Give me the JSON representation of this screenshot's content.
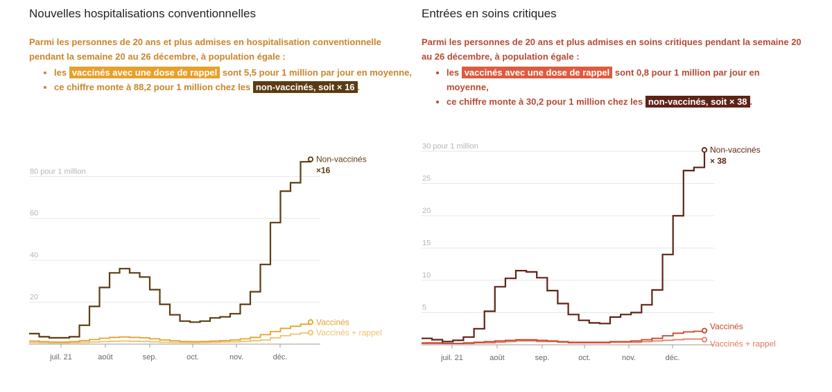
{
  "panels": [
    {
      "title": "Nouvelles hospitalisations conventionnelles",
      "intro": "Parmi les personnes de 20 ans et plus admises en hospitalisation conventionnelle pendant la semaine 20 au 26 décembre, à population égale :",
      "bullet1_pre": "les",
      "bullet1_hl": "vaccinés avec une dose de rappel",
      "bullet1_post": "sont 5,5 pour 1 million par jour en moyenne,",
      "bullet2_pre": "ce chiffre monte à 88,2 pour 1 million chez les",
      "bullet2_hl": "non-vaccinés, soit × 16",
      "bullet2_post": ".",
      "colors": {
        "text": "#c9852c",
        "hl_booster": "#e8a02a",
        "hl_unvax": "#5b3c12",
        "bullet": "#c9852c"
      }
    },
    {
      "title": "Entrées en soins critiques",
      "intro": "Parmi les personnes de 20 ans et plus admises en soins critiques pendant la semaine 20 au 26 décembre, à population égale :",
      "bullet1_pre": "les",
      "bullet1_hl": "vaccinés avec une dose de rappel",
      "bullet1_post": "sont 0,8 pour 1 million par jour en moyenne,",
      "bullet2_pre": "ce chiffre monte à 30,2 pour 1 million chez les",
      "bullet2_hl": "non-vaccinés, soit × 38",
      "bullet2_post": ".",
      "colors": {
        "text": "#b54a33",
        "hl_booster": "#dd5b3e",
        "hl_unvax": "#5f2217",
        "bullet": "#dd5b3e"
      }
    }
  ],
  "chart_data": [
    {
      "type": "line",
      "step": true,
      "x_ticks": [
        "juil. 21",
        "août",
        "sep.",
        "oct.",
        "nov.",
        "déc."
      ],
      "y_ticks": [
        20,
        40,
        60,
        80
      ],
      "y_tick_labels": [
        "20",
        "40",
        "60",
        "80 pour 1 million"
      ],
      "ylim": [
        0,
        95
      ],
      "grid": true,
      "series": [
        {
          "name": "Non-vaccinés",
          "annotation": "×16",
          "color": "#5b3c12",
          "values": [
            5,
            3.5,
            3,
            3,
            3.5,
            9,
            18,
            27,
            34,
            36,
            34,
            32,
            26,
            19,
            14,
            11,
            10.5,
            11,
            12.5,
            13,
            14.5,
            19,
            25,
            38,
            58,
            73,
            77,
            87,
            88.2
          ]
        },
        {
          "name": "Vaccinés",
          "color": "#e8a02a",
          "values": [
            1.5,
            1.2,
            1,
            1,
            1.2,
            1.6,
            2.2,
            2.8,
            3.2,
            3.4,
            3.2,
            3,
            2.5,
            2,
            1.6,
            1.3,
            1.2,
            1.3,
            1.5,
            1.7,
            2,
            2.5,
            3.2,
            4.5,
            6,
            7.5,
            8.5,
            9.5,
            10.5
          ]
        },
        {
          "name": "Vaccinés + rappel",
          "color": "#f0c06a",
          "values": [
            0.8,
            0.7,
            0.6,
            0.6,
            0.7,
            0.8,
            1,
            1.2,
            1.4,
            1.5,
            1.4,
            1.3,
            1.1,
            0.9,
            0.8,
            0.7,
            0.7,
            0.8,
            0.9,
            1,
            1.1,
            1.3,
            1.6,
            2,
            3,
            4,
            4.8,
            5.3,
            5.5
          ]
        }
      ]
    },
    {
      "type": "line",
      "step": true,
      "x_ticks": [
        "juil. 21",
        "août",
        "sep.",
        "oct.",
        "nov.",
        "déc."
      ],
      "y_ticks": [
        5,
        10,
        15,
        20,
        25,
        30
      ],
      "y_tick_labels": [
        "5",
        "10",
        "15",
        "20",
        "25",
        "30 pour 1 million"
      ],
      "ylim": [
        0,
        30
      ],
      "grid": true,
      "series": [
        {
          "name": "Non-vaccinés",
          "annotation": "× 38",
          "color": "#5f2217",
          "values": [
            1,
            0.8,
            0.5,
            0.7,
            1.2,
            2.5,
            5.2,
            9,
            10.3,
            11.5,
            11.3,
            10.4,
            8.4,
            6.4,
            4.7,
            3.8,
            3.4,
            3.3,
            4.3,
            4.7,
            5,
            6.2,
            8.5,
            14,
            20,
            27,
            27.5,
            30.2
          ]
        },
        {
          "name": "Vaccinés",
          "color": "#c9432a",
          "values": [
            0.3,
            0.3,
            0.2,
            0.2,
            0.3,
            0.4,
            0.5,
            0.6,
            0.7,
            0.8,
            0.8,
            0.7,
            0.6,
            0.5,
            0.4,
            0.4,
            0.4,
            0.4,
            0.5,
            0.5,
            0.6,
            0.8,
            1,
            1.4,
            1.8,
            2,
            2.1,
            2.2
          ]
        },
        {
          "name": "Vaccinés + rappel",
          "color": "#e07a5f",
          "values": [
            0.2,
            0.2,
            0.2,
            0.2,
            0.2,
            0.3,
            0.3,
            0.4,
            0.5,
            0.6,
            0.6,
            0.5,
            0.5,
            0.4,
            0.3,
            0.3,
            0.3,
            0.3,
            0.4,
            0.4,
            0.4,
            0.5,
            0.6,
            0.7,
            0.8,
            0.9,
            0.9,
            0.8
          ]
        }
      ]
    }
  ]
}
